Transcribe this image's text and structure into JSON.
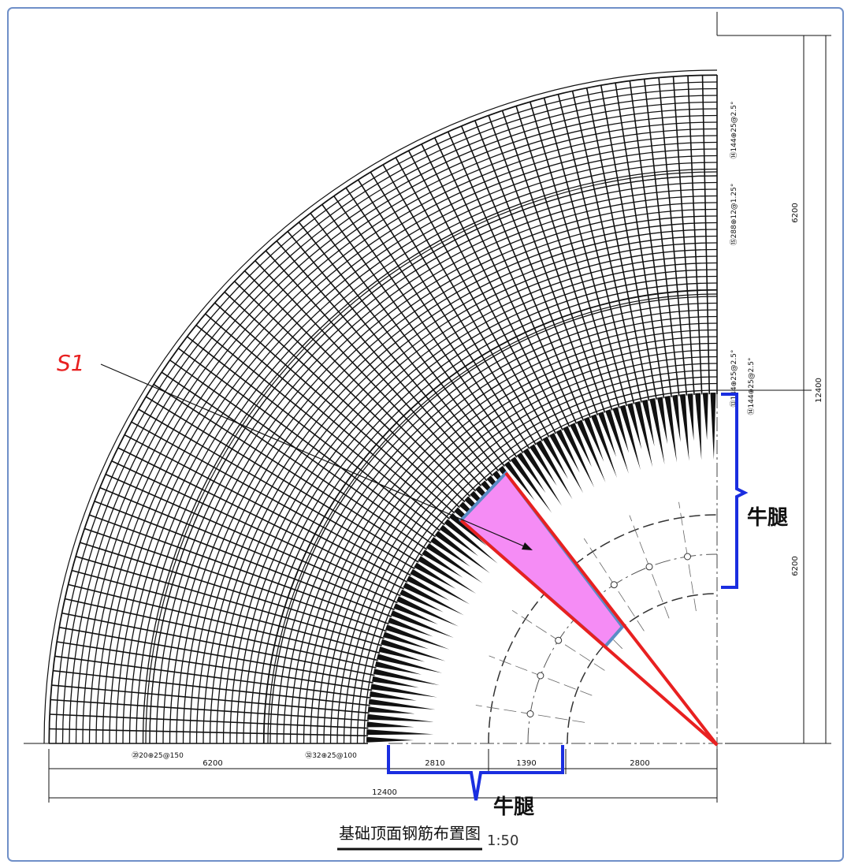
{
  "drawing": {
    "callout": "S1",
    "corbel_labels": [
      "牛腿",
      "牛腿"
    ],
    "right_dimensions": [
      "6200",
      "6200",
      "12400"
    ],
    "bottom_dimensions": [
      "6200",
      "2810",
      "1390",
      "2800",
      "12400"
    ],
    "right_rebar_labels": [
      "⑭144⊕25@2.5°",
      "⑮288⊕12@1.25°",
      "⑬144⊕25@2.5°",
      "⑭144⊕25@2.5°"
    ],
    "bottom_rebar_labels": [
      "⑳20⊕25@150",
      "㉜32⊕25@100"
    ],
    "title": "基础顶面钢筋布置图",
    "scale": "1:50"
  }
}
